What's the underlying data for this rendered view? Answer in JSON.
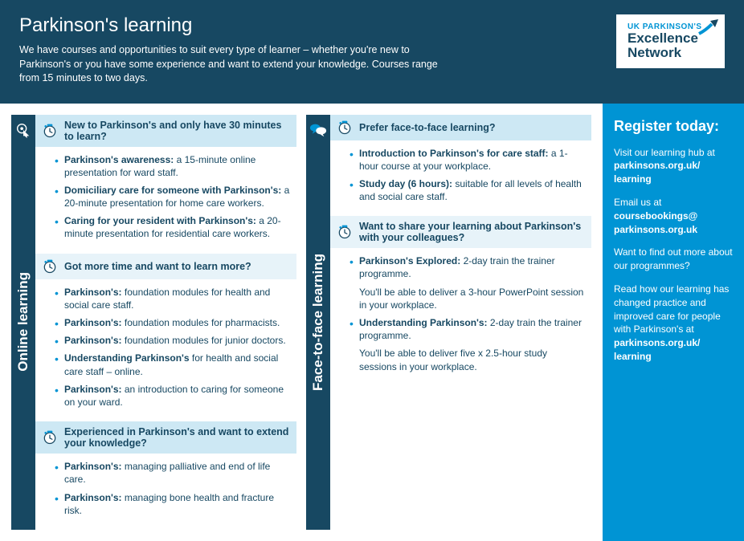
{
  "header": {
    "title": "Parkinson's learning",
    "intro": "We have courses and opportunities to suit every type of learner – whether you're new to Parkinson's or you have some experience and want to extend your knowledge. Courses range from 15 minutes to two days."
  },
  "logo": {
    "small": "UK PARKINSON'S",
    "line1": "Excellence",
    "line2": "Network"
  },
  "colors": {
    "dark": "#174862",
    "accent": "#0094d4",
    "panelA": "#cde8f4",
    "panelB": "#e7f3f9"
  },
  "online": {
    "tab": "Online learning",
    "sections": [
      {
        "heading": "New to Parkinson's and only have 30 minutes to learn?",
        "items": [
          {
            "title": "Parkinson's awareness:",
            "desc": " a 15-minute online presentation for ward staff."
          },
          {
            "title": "Domiciliary care for someone with Parkinson's:",
            "desc": " a 20-minute presentation for home care workers."
          },
          {
            "title": "Caring for your resident with Parkinson's:",
            "desc": " a 20-minute presentation for residential care workers."
          }
        ]
      },
      {
        "heading": "Got more time and want to learn more?",
        "items": [
          {
            "title": "Parkinson's:",
            "desc": " foundation modules for health and social care staff."
          },
          {
            "title": "Parkinson's:",
            "desc": " foundation modules for pharmacists."
          },
          {
            "title": "Parkinson's:",
            "desc": " foundation modules for junior doctors."
          },
          {
            "title": "Understanding Parkinson's",
            "desc": " for health and social care staff – online."
          },
          {
            "title": "Parkinson's:",
            "desc": " an introduction to caring for someone on your ward."
          }
        ]
      },
      {
        "heading": "Experienced in Parkinson's and want to extend your knowledge?",
        "items": [
          {
            "title": "Parkinson's:",
            "desc": " managing palliative and end of life care."
          },
          {
            "title": "Parkinson's:",
            "desc": " managing bone health and fracture risk."
          }
        ]
      }
    ]
  },
  "f2f": {
    "tab": "Face-to-face learning",
    "sections": [
      {
        "heading": "Prefer face-to-face learning?",
        "items": [
          {
            "title": "Introduction to Parkinson's for care staff:",
            "desc": " a 1-hour course at your workplace."
          },
          {
            "title": "Study day (6 hours):",
            "desc": " suitable for all levels of health and social care staff."
          }
        ]
      },
      {
        "heading": "Want to share your learning about Parkinson's with your colleagues?",
        "items": [
          {
            "title": "Parkinson's Explored:",
            "desc": " 2-day train the trainer programme.",
            "sub": "You'll be able to deliver a 3-hour PowerPoint session in your workplace."
          },
          {
            "title": "Understanding Parkinson's:",
            "desc": " 2-day train the trainer programme.",
            "sub": "You'll be able to deliver five x 2.5-hour study sessions in your workplace."
          }
        ]
      }
    ]
  },
  "sidebar": {
    "title": "Register today:",
    "p1a": "Visit our learning hub at ",
    "p1b": "parkinsons.org.uk/\nlearning",
    "p2a": "Email us at ",
    "p2b": "coursebookings@\nparkinsons.org.uk",
    "p3": "Want to find out more about our programmes?",
    "p4a": "Read how our learning has changed practice and improved care for people with Parkinson's at ",
    "p4b": "parkinsons.org.uk/\nlearning"
  }
}
